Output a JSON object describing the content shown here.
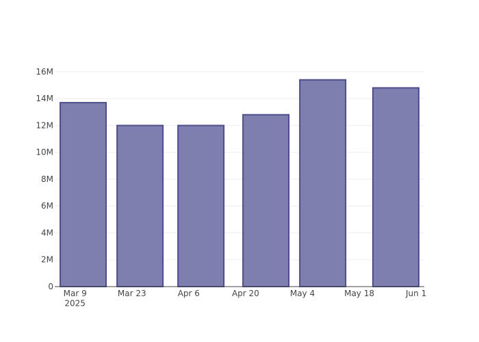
{
  "chart_data": {
    "type": "bar",
    "x": [
      "2025-03-11",
      "2025-03-25",
      "2025-04-09",
      "2025-04-25",
      "2025-05-09",
      "2025-05-27"
    ],
    "values": [
      13700000,
      12000000,
      12000000,
      12800000,
      15400000,
      14800000
    ],
    "color": "#7e7eaf",
    "edge_color": "#4d4d8c",
    "xlim": [
      "2025-03-04",
      "2025-06-03"
    ],
    "xticks": [
      {
        "value": "2025-03-09",
        "label": "Mar 9\n2025"
      },
      {
        "value": "2025-03-23",
        "label": "Mar 23"
      },
      {
        "value": "2025-04-06",
        "label": "Apr 6"
      },
      {
        "value": "2025-04-20",
        "label": "Apr 20"
      },
      {
        "value": "2025-05-04",
        "label": "May 4"
      },
      {
        "value": "2025-05-18",
        "label": "May 18"
      },
      {
        "value": "2025-06-01",
        "label": "Jun 1"
      }
    ],
    "ylim": [
      0,
      16200000
    ],
    "yticks": [
      0,
      {
        "value": 2000000,
        "label": "2M"
      },
      {
        "value": 4000000,
        "label": "4M"
      },
      {
        "value": 6000000,
        "label": "6M"
      },
      {
        "value": 8000000,
        "label": "8M"
      },
      {
        "value": 10000000,
        "label": "10M"
      },
      {
        "value": 12000000,
        "label": "12M"
      },
      {
        "value": 14000000,
        "label": "14M"
      },
      {
        "value": 16000000,
        "label": "16M"
      }
    ],
    "grid": true
  }
}
